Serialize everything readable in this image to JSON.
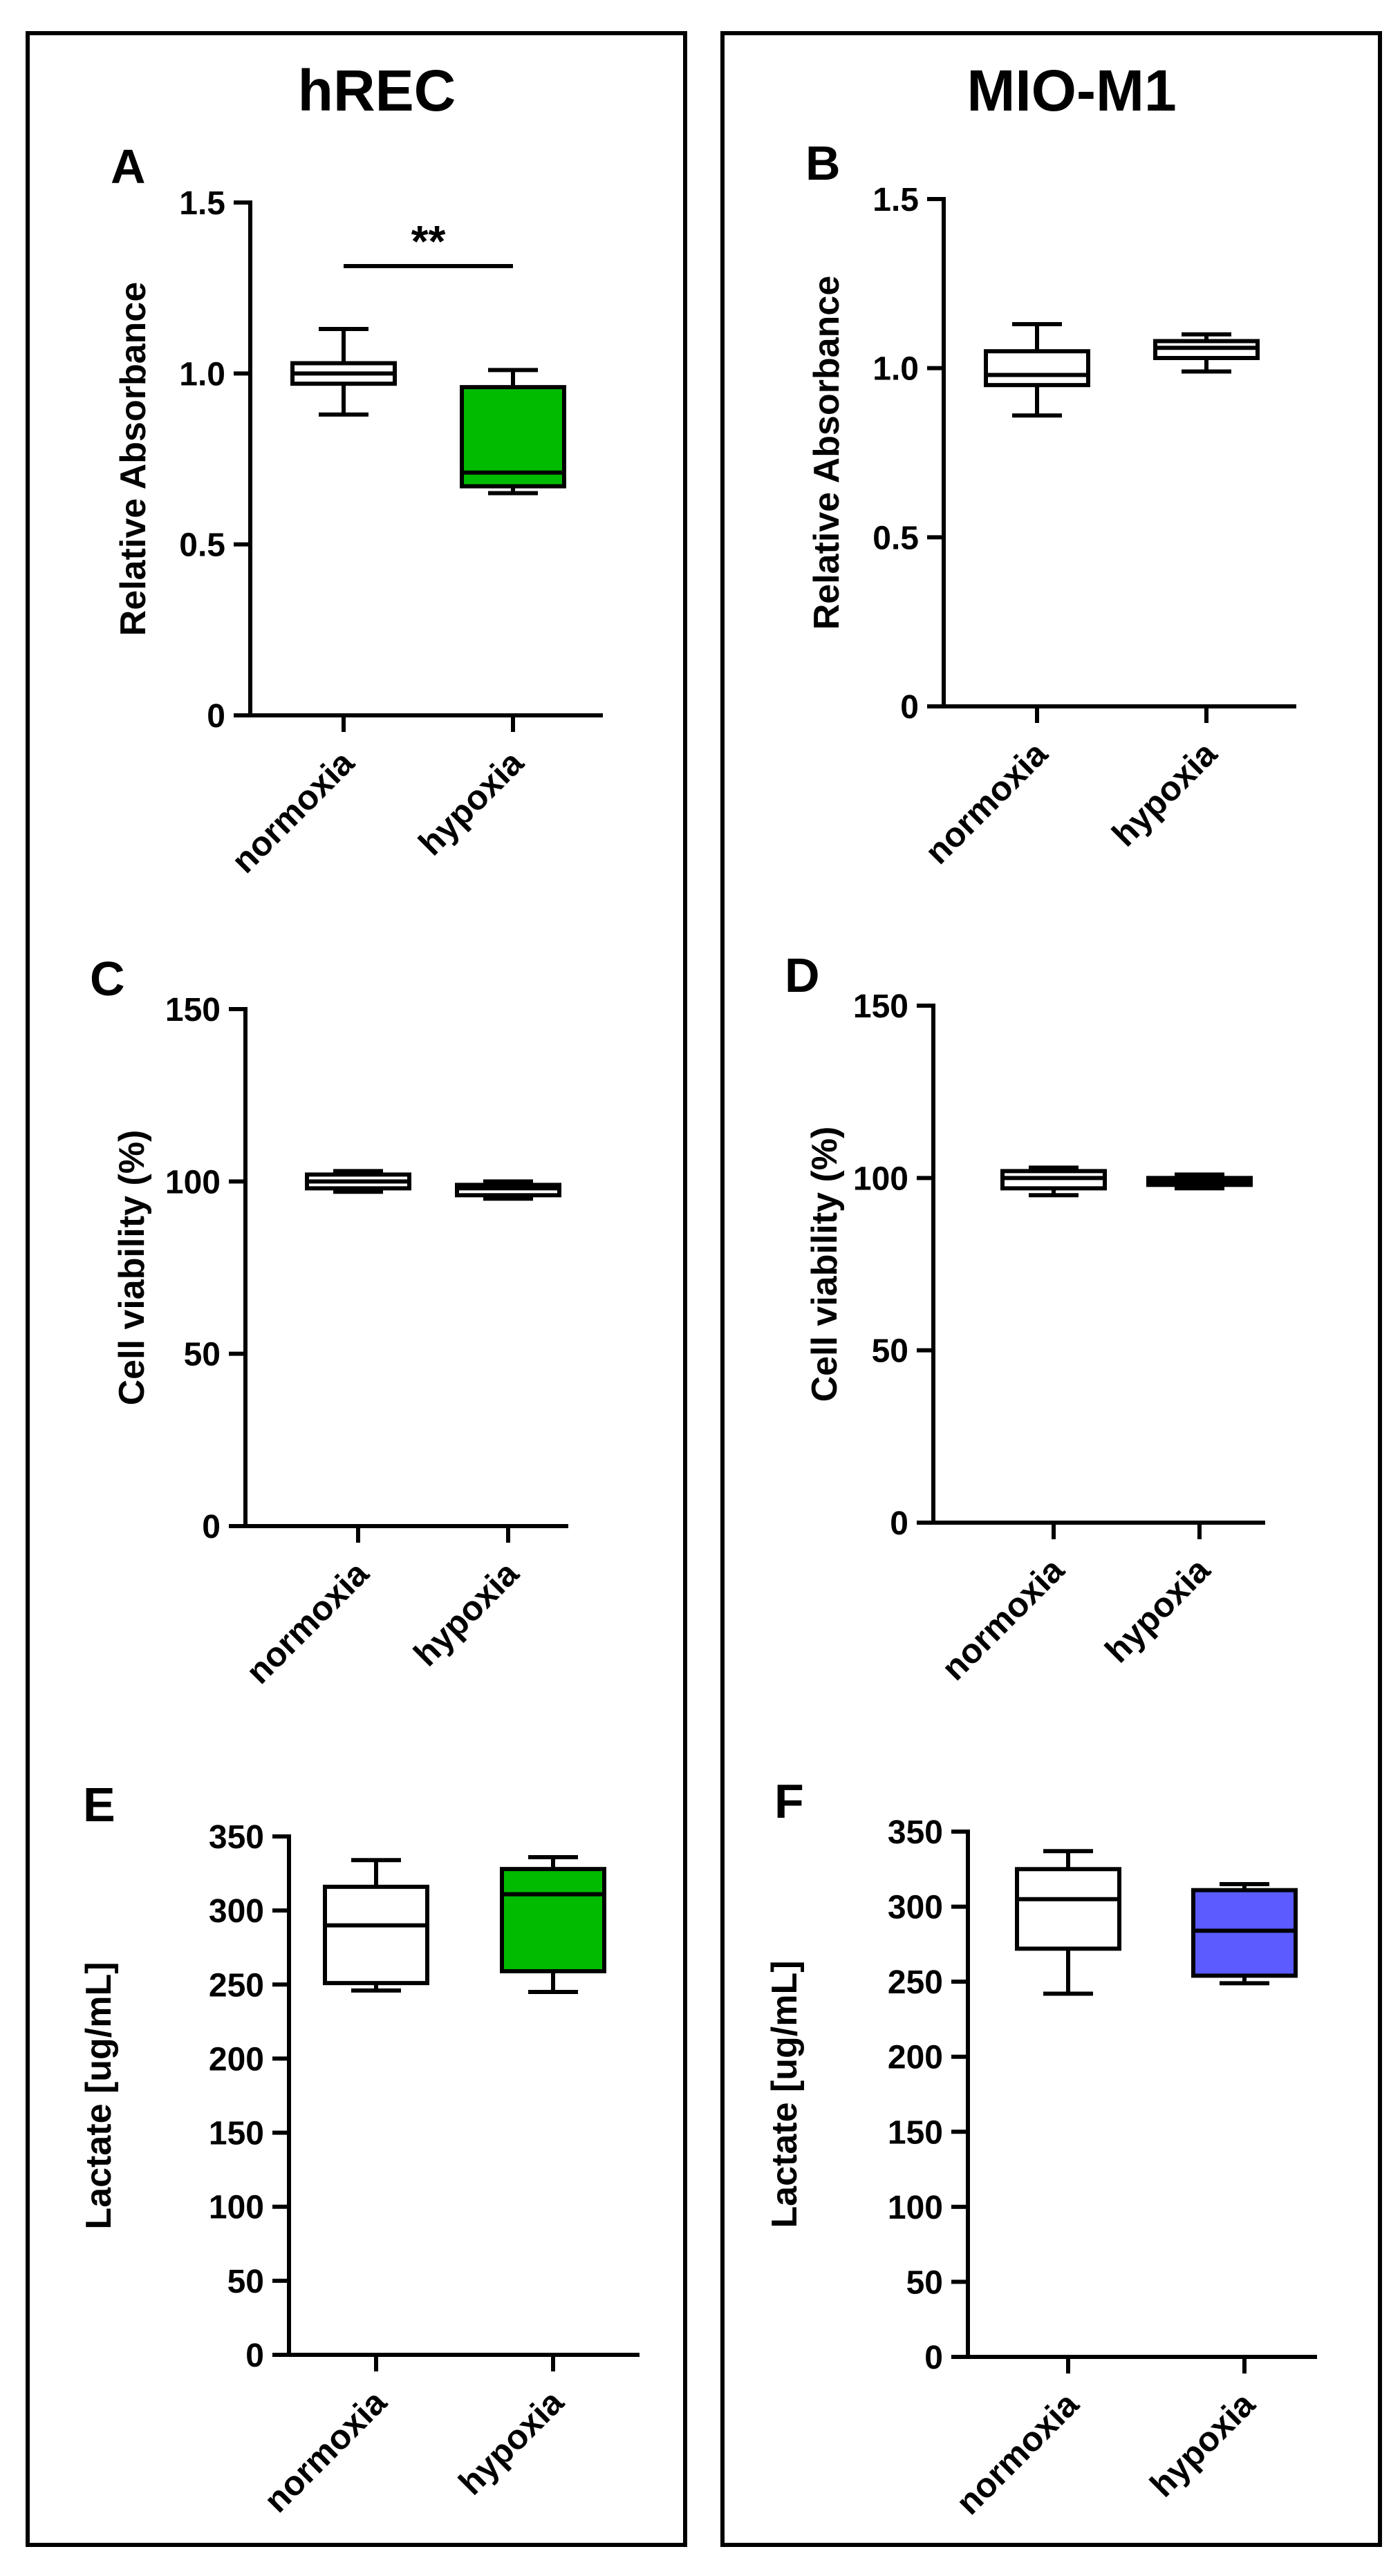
{
  "figure": {
    "columns": [
      {
        "title": "hREC"
      },
      {
        "title": "MIO-M1"
      }
    ]
  },
  "colors": {
    "green": "#00BB00",
    "blue": "#5B5BFF",
    "white": "#FFFFFF",
    "ink": "#000000"
  },
  "chart_data": [
    {
      "panel": "A",
      "type": "box",
      "column": "hREC",
      "ylabel": "Relative Absorbance",
      "ylim": [
        0,
        1.5
      ],
      "yticks": [
        0,
        0.5,
        1.0,
        1.5
      ],
      "ytick_labels": [
        "0",
        "0.5",
        "1.0",
        "1.5"
      ],
      "categories": [
        "normoxia",
        "hypoxia"
      ],
      "boxes": [
        {
          "category": "normoxia",
          "min": 0.88,
          "q1": 0.97,
          "median": 1.0,
          "q3": 1.03,
          "max": 1.13,
          "fill": "#FFFFFF"
        },
        {
          "category": "hypoxia",
          "min": 0.65,
          "q1": 0.67,
          "median": 0.71,
          "q3": 0.96,
          "max": 1.01,
          "fill": "#00BB00"
        }
      ],
      "significance": "**"
    },
    {
      "panel": "B",
      "type": "box",
      "column": "MIO-M1",
      "ylabel": "Relative Absorbance",
      "ylim": [
        0,
        1.5
      ],
      "yticks": [
        0,
        0.5,
        1.0,
        1.5
      ],
      "ytick_labels": [
        "0",
        "0.5",
        "1.0",
        "1.5"
      ],
      "categories": [
        "normoxia",
        "hypoxia"
      ],
      "boxes": [
        {
          "category": "normoxia",
          "min": 0.86,
          "q1": 0.95,
          "median": 0.98,
          "q3": 1.05,
          "max": 1.13,
          "fill": "#FFFFFF"
        },
        {
          "category": "hypoxia",
          "min": 0.99,
          "q1": 1.03,
          "median": 1.06,
          "q3": 1.08,
          "max": 1.1,
          "fill": "#FFFFFF"
        }
      ],
      "significance": ""
    },
    {
      "panel": "C",
      "type": "box",
      "column": "hREC",
      "ylabel": "Cell viability (%)",
      "ylim": [
        0,
        150
      ],
      "yticks": [
        0,
        50,
        100,
        150
      ],
      "ytick_labels": [
        "0",
        "50",
        "100",
        "150"
      ],
      "categories": [
        "normoxia",
        "hypoxia"
      ],
      "boxes": [
        {
          "category": "normoxia",
          "min": 97,
          "q1": 98,
          "median": 100,
          "q3": 102,
          "max": 103,
          "fill": "#FFFFFF"
        },
        {
          "category": "hypoxia",
          "min": 95,
          "q1": 96,
          "median": 98,
          "q3": 99,
          "max": 100,
          "fill": "#FFFFFF"
        }
      ],
      "significance": ""
    },
    {
      "panel": "D",
      "type": "box",
      "column": "MIO-M1",
      "ylabel": "Cell viability (%)",
      "ylim": [
        0,
        150
      ],
      "yticks": [
        0,
        50,
        100,
        150
      ],
      "ytick_labels": [
        "0",
        "50",
        "100",
        "150"
      ],
      "categories": [
        "normoxia",
        "hypoxia"
      ],
      "boxes": [
        {
          "category": "normoxia",
          "min": 95,
          "q1": 97,
          "median": 100,
          "q3": 102,
          "max": 103,
          "fill": "#FFFFFF"
        },
        {
          "category": "hypoxia",
          "min": 97,
          "q1": 98,
          "median": 99,
          "q3": 100,
          "max": 101,
          "fill": "#FFFFFF"
        }
      ],
      "significance": ""
    },
    {
      "panel": "E",
      "type": "box",
      "column": "hREC",
      "ylabel": "Lactate [ug/mL]",
      "ylim": [
        0,
        350
      ],
      "yticks": [
        0,
        50,
        100,
        150,
        200,
        250,
        300,
        350
      ],
      "ytick_labels": [
        "0",
        "50",
        "100",
        "150",
        "200",
        "250",
        "300",
        "350"
      ],
      "categories": [
        "normoxia",
        "hypoxia"
      ],
      "boxes": [
        {
          "category": "normoxia",
          "min": 246,
          "q1": 251,
          "median": 290,
          "q3": 316,
          "max": 334,
          "fill": "#FFFFFF"
        },
        {
          "category": "hypoxia",
          "min": 245,
          "q1": 259,
          "median": 311,
          "q3": 328,
          "max": 336,
          "fill": "#00BB00"
        }
      ],
      "significance": ""
    },
    {
      "panel": "F",
      "type": "box",
      "column": "MIO-M1",
      "ylabel": "Lactate [ug/mL]",
      "ylim": [
        0,
        350
      ],
      "yticks": [
        0,
        50,
        100,
        150,
        200,
        250,
        300,
        350
      ],
      "ytick_labels": [
        "0",
        "50",
        "100",
        "150",
        "200",
        "250",
        "300",
        "350"
      ],
      "categories": [
        "normoxia",
        "hypoxia"
      ],
      "boxes": [
        {
          "category": "normoxia",
          "min": 242,
          "q1": 272,
          "median": 305,
          "q3": 325,
          "max": 337,
          "fill": "#FFFFFF"
        },
        {
          "category": "hypoxia",
          "min": 249,
          "q1": 254,
          "median": 284,
          "q3": 311,
          "max": 315,
          "fill": "#5B5BFF"
        }
      ],
      "significance": ""
    }
  ]
}
